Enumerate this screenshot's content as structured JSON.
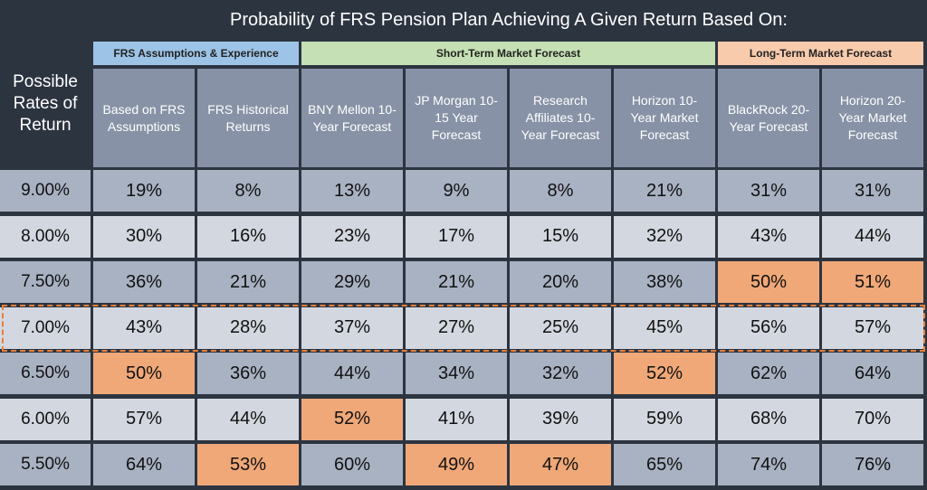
{
  "title": "Probability of FRS Pension Plan Achieving A Given Return Based On:",
  "row_header": "Possible Rates of Return",
  "groups": [
    {
      "label": "FRS Assumptions & Experience",
      "color": "#9dc3e6",
      "span": 2
    },
    {
      "label": "Short-Term Market Forecast",
      "color": "#c5e0b4",
      "span": 4
    },
    {
      "label": "Long-Term Market Forecast",
      "color": "#f8cbad",
      "span": 2
    }
  ],
  "columns": [
    "Based on FRS Assumptions",
    "FRS Historical Returns",
    "BNY Mellon 10-Year Forecast",
    "JP Morgan 10-15 Year Forecast",
    "Research Affiliates 10-Year Forecast",
    "Horizon 10-Year Market Forecast",
    "BlackRock 20-Year Forecast",
    "Horizon 20-Year Market Forecast"
  ],
  "rows": [
    {
      "rate": "9.00%",
      "values": [
        "19%",
        "8%",
        "13%",
        "9%",
        "8%",
        "21%",
        "31%",
        "31%"
      ]
    },
    {
      "rate": "8.00%",
      "values": [
        "30%",
        "16%",
        "23%",
        "17%",
        "15%",
        "32%",
        "43%",
        "44%"
      ]
    },
    {
      "rate": "7.50%",
      "values": [
        "36%",
        "21%",
        "29%",
        "21%",
        "20%",
        "38%",
        "50%",
        "51%"
      ]
    },
    {
      "rate": "7.00%",
      "values": [
        "43%",
        "28%",
        "37%",
        "27%",
        "25%",
        "45%",
        "56%",
        "57%"
      ]
    },
    {
      "rate": "6.50%",
      "values": [
        "50%",
        "36%",
        "44%",
        "34%",
        "32%",
        "52%",
        "62%",
        "64%"
      ]
    },
    {
      "rate": "6.00%",
      "values": [
        "57%",
        "44%",
        "52%",
        "41%",
        "39%",
        "59%",
        "68%",
        "70%"
      ]
    },
    {
      "rate": "5.50%",
      "values": [
        "64%",
        "53%",
        "60%",
        "49%",
        "47%",
        "65%",
        "74%",
        "76%"
      ]
    }
  ],
  "highlight_color": "#f0a878",
  "highlighted_cells": [
    [
      2,
      6
    ],
    [
      2,
      7
    ],
    [
      4,
      0
    ],
    [
      4,
      5
    ],
    [
      5,
      2
    ],
    [
      6,
      1
    ],
    [
      6,
      3
    ],
    [
      6,
      4
    ]
  ],
  "outlined_row": 3
}
